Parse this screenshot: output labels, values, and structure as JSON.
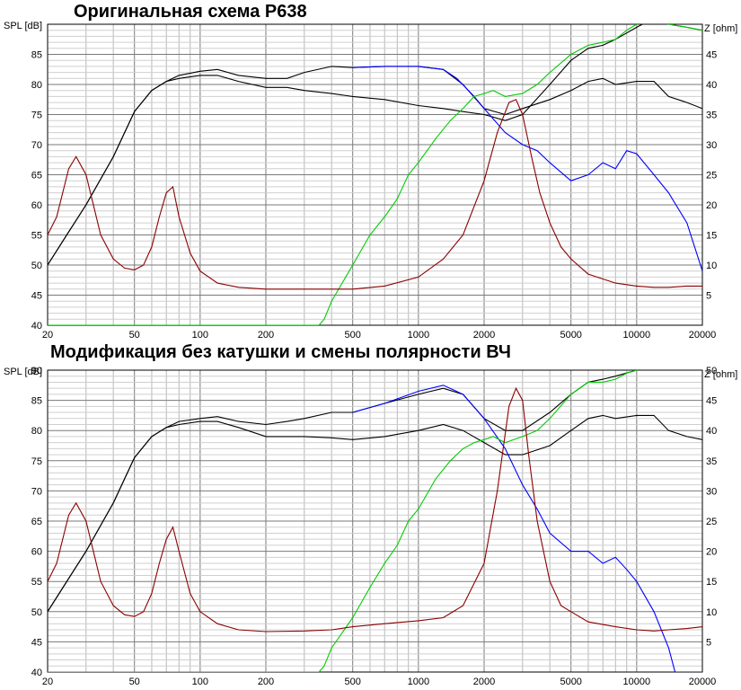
{
  "chart_data": [
    {
      "type": "line",
      "title": "Оригинальная схема  Р638",
      "xscale": "log",
      "xlim": [
        20,
        20000
      ],
      "ylim": [
        40,
        90
      ],
      "y2lim": [
        0,
        50
      ],
      "ylabel": "SPL [dB]",
      "y2label": "Z [ohm]",
      "xticks": [
        20,
        50,
        100,
        200,
        500,
        1000,
        2000,
        5000,
        10000,
        20000
      ],
      "xtick_labels": [
        "20",
        "50",
        "100",
        "200",
        "500",
        "1000",
        "2000",
        "5000",
        "10000",
        "20000"
      ],
      "yticks": [
        40,
        45,
        50,
        55,
        60,
        65,
        70,
        75,
        80,
        85
      ],
      "y2ticks": [
        5,
        10,
        15,
        20,
        25,
        30,
        35,
        40,
        45
      ],
      "grid": true,
      "series": [
        {
          "color": "#000000",
          "axis": "y",
          "x": [
            20,
            25,
            30,
            40,
            50,
            60,
            70,
            80,
            100,
            120,
            150,
            200,
            250,
            300,
            400,
            500,
            700,
            1000,
            1300,
            1600,
            2000,
            2500,
            3000,
            4000,
            5000,
            6000,
            7000,
            8000,
            10000,
            12000,
            14000,
            17000,
            20000
          ],
          "values": [
            50,
            55.5,
            60,
            68,
            75.5,
            79,
            80.5,
            81.5,
            82.2,
            82.5,
            81.5,
            81,
            81,
            82,
            83,
            82.8,
            83,
            83,
            82.5,
            80,
            76,
            75,
            76,
            77.5,
            79,
            80.5,
            81,
            80,
            80.5,
            80.5,
            78,
            77,
            76
          ]
        },
        {
          "color": "#000000",
          "axis": "y",
          "x": [
            20,
            25,
            30,
            40,
            50,
            60,
            70,
            80,
            100,
            120,
            150,
            200,
            250,
            300,
            400,
            500,
            700,
            1000,
            1300,
            1600,
            2000,
            2500,
            3000,
            4000,
            5000,
            6000,
            7000,
            8000,
            10000,
            12000,
            14000,
            17000,
            20000
          ],
          "values": [
            50,
            55.5,
            60,
            68,
            75.5,
            79,
            80.5,
            81,
            81.5,
            81.5,
            80.5,
            79.5,
            79.5,
            79,
            78.5,
            78,
            77.5,
            76.5,
            76,
            75.5,
            75,
            74,
            75,
            80,
            84,
            86,
            86.5,
            87.5,
            89.5,
            91,
            90,
            89.5,
            89
          ]
        },
        {
          "color": "#0000ff",
          "axis": "y",
          "x": [
            500,
            700,
            1000,
            1300,
            1500,
            1800,
            2000,
            2500,
            3000,
            3500,
            4000,
            5000,
            6000,
            7000,
            8000,
            9000,
            10000,
            12000,
            14000,
            17000,
            20000
          ],
          "values": [
            82.8,
            83,
            83,
            82.5,
            81,
            78,
            76,
            72,
            70,
            69,
            67,
            64,
            65,
            67,
            66,
            69,
            68.5,
            65,
            62,
            57,
            49
          ]
        },
        {
          "color": "#00cc00",
          "axis": "y",
          "x": [
            20,
            100,
            200,
            350,
            370,
            400,
            500,
            600,
            700,
            800,
            900,
            1000,
            1200,
            1400,
            1600,
            1800,
            2000,
            2200,
            2500,
            3000,
            3500,
            4000,
            5000,
            6000,
            7000,
            8000,
            9000,
            10000,
            12000,
            14000,
            17000,
            20000
          ],
          "values": [
            40,
            40,
            40,
            40,
            41,
            44,
            50,
            55,
            58,
            61,
            65,
            67,
            71,
            74,
            76,
            78,
            78.5,
            79,
            78,
            78.5,
            80,
            82,
            85,
            86.5,
            87,
            87.5,
            89,
            90,
            91,
            90,
            89.5,
            89
          ]
        },
        {
          "color": "#8b0000",
          "axis": "y2",
          "x": [
            20,
            22,
            25,
            27,
            30,
            35,
            40,
            45,
            50,
            55,
            60,
            65,
            70,
            75,
            80,
            90,
            100,
            120,
            150,
            200,
            300,
            400,
            500,
            700,
            1000,
            1300,
            1600,
            2000,
            2300,
            2600,
            2800,
            3000,
            3300,
            3600,
            4000,
            4500,
            5000,
            6000,
            8000,
            10000,
            12000,
            14000,
            17000,
            20000
          ],
          "values": [
            15,
            18,
            26,
            28,
            25,
            15,
            11,
            9.5,
            9.2,
            10,
            13,
            18,
            22,
            23,
            18,
            12,
            9,
            7,
            6.3,
            6,
            6,
            6,
            6,
            6.5,
            8,
            11,
            15,
            24,
            32,
            37,
            37.5,
            35,
            28,
            22,
            17,
            13,
            11,
            8.5,
            7,
            6.5,
            6.3,
            6.3,
            6.5,
            6.5
          ]
        }
      ]
    },
    {
      "type": "line",
      "title": "Модификация без катушки и смены полярности ВЧ",
      "xscale": "log",
      "xlim": [
        20,
        20000
      ],
      "ylim": [
        40,
        90
      ],
      "y2lim": [
        0,
        50
      ],
      "ylabel": "SPL [dB]",
      "y2label": "Z [ohm]",
      "xticks": [
        20,
        50,
        100,
        200,
        500,
        1000,
        2000,
        5000,
        10000,
        20000
      ],
      "xtick_labels": [
        "20",
        "50",
        "100",
        "200",
        "500",
        "1000",
        "2000",
        "5000",
        "10000",
        "20000"
      ],
      "yticks": [
        40,
        45,
        50,
        55,
        60,
        65,
        70,
        75,
        80,
        85,
        90
      ],
      "y2ticks": [
        5,
        10,
        15,
        20,
        25,
        30,
        35,
        40,
        45,
        50
      ],
      "grid": true,
      "series": [
        {
          "color": "#000000",
          "axis": "y",
          "x": [
            20,
            25,
            30,
            40,
            50,
            60,
            70,
            80,
            100,
            120,
            150,
            200,
            250,
            300,
            400,
            500,
            700,
            1000,
            1300,
            1600,
            2000,
            2500,
            3000,
            4000,
            5000,
            6000,
            7000,
            8000,
            10000,
            12000,
            14000,
            17000,
            20000
          ],
          "values": [
            50,
            55.5,
            60,
            68,
            75.5,
            79,
            80.5,
            81.5,
            82,
            82.3,
            81.5,
            81,
            81.5,
            82,
            83,
            83,
            84.5,
            86,
            87,
            86,
            82,
            80,
            80,
            83,
            86,
            88,
            88.5,
            89,
            90,
            92,
            91.5,
            91.5,
            91
          ]
        },
        {
          "color": "#000000",
          "axis": "y",
          "x": [
            20,
            25,
            30,
            40,
            50,
            60,
            70,
            80,
            100,
            120,
            150,
            200,
            250,
            300,
            400,
            500,
            700,
            1000,
            1300,
            1600,
            2000,
            2500,
            3000,
            4000,
            5000,
            6000,
            7000,
            8000,
            10000,
            12000,
            14000,
            17000,
            20000
          ],
          "values": [
            50,
            55.5,
            60,
            68,
            75.5,
            79,
            80.5,
            81,
            81.5,
            81.5,
            80.5,
            79,
            79,
            79,
            78.8,
            78.5,
            79,
            80,
            81,
            80,
            78,
            76,
            76,
            77.5,
            80,
            82,
            82.5,
            82,
            82.5,
            82.5,
            80,
            79,
            78.5
          ]
        },
        {
          "color": "#0000ff",
          "axis": "y",
          "x": [
            500,
            700,
            1000,
            1300,
            1600,
            2000,
            2500,
            3000,
            3500,
            4000,
            5000,
            6000,
            7000,
            8000,
            9000,
            10000,
            12000,
            14000,
            15000,
            16000,
            20000
          ],
          "values": [
            83,
            84.5,
            86.5,
            87.5,
            86,
            82,
            77,
            71,
            67,
            63,
            60,
            60,
            58,
            59,
            57,
            55,
            50,
            44,
            40,
            40,
            40
          ]
        },
        {
          "color": "#00cc00",
          "axis": "y",
          "x": [
            20,
            100,
            200,
            350,
            370,
            400,
            500,
            600,
            700,
            800,
            900,
            1000,
            1200,
            1400,
            1600,
            1800,
            2000,
            2200,
            2500,
            3000,
            3500,
            4000,
            5000,
            6000,
            7000,
            8000,
            9000,
            10000,
            12000,
            14000,
            17000,
            20000
          ],
          "values": [
            40,
            40,
            40,
            40,
            41,
            44,
            49,
            54,
            58,
            61,
            65,
            67,
            72,
            75,
            77,
            78,
            78.5,
            79,
            78,
            79,
            80,
            82,
            86,
            88,
            88,
            88.5,
            89.5,
            90,
            92,
            91.5,
            91.5,
            91
          ]
        },
        {
          "color": "#8b0000",
          "axis": "y2",
          "x": [
            20,
            22,
            25,
            27,
            30,
            35,
            40,
            45,
            50,
            55,
            60,
            65,
            70,
            75,
            80,
            90,
            100,
            120,
            150,
            200,
            300,
            400,
            500,
            700,
            1000,
            1300,
            1600,
            2000,
            2300,
            2600,
            2800,
            3000,
            3200,
            3500,
            4000,
            4500,
            5000,
            6000,
            8000,
            10000,
            12000,
            14000,
            17000,
            20000
          ],
          "values": [
            15,
            18,
            26,
            28,
            25,
            15,
            11,
            9.5,
            9.2,
            10,
            13,
            18,
            22,
            24,
            20,
            13,
            10,
            8,
            7,
            6.7,
            6.8,
            7,
            7.5,
            8,
            8.5,
            9,
            11,
            18,
            30,
            44,
            47,
            45,
            36,
            25,
            15,
            11,
            10,
            8.3,
            7.5,
            7,
            6.8,
            7,
            7.2,
            7.5
          ]
        }
      ]
    }
  ]
}
